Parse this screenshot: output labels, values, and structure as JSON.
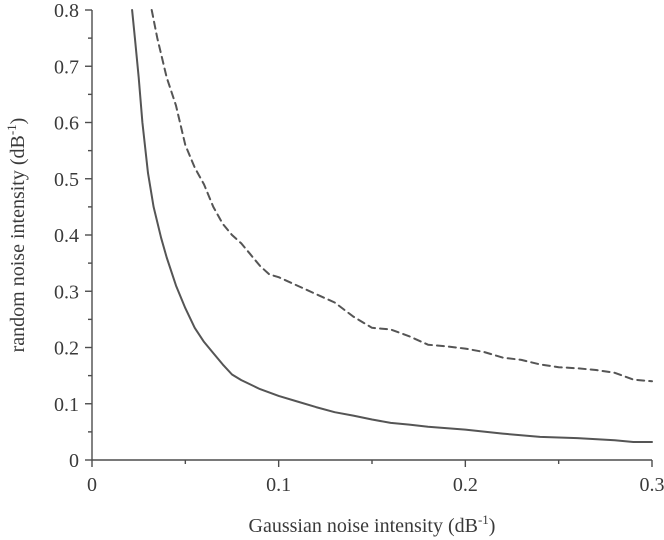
{
  "chart_data": {
    "type": "line",
    "title": "",
    "xlabel": {
      "main": "Gaussian noise intensity (dB",
      "sup": "-1",
      "close": ")"
    },
    "ylabel": {
      "main": "random noise intensity (dB",
      "sup": "-1",
      "close": ")"
    },
    "xlim": [
      0,
      0.3
    ],
    "ylim": [
      0,
      0.8
    ],
    "x_ticks": [
      0,
      0.1,
      0.2,
      0.3
    ],
    "x_tick_labels": [
      "0",
      "0.1",
      "0.2",
      "0.3"
    ],
    "y_ticks": [
      0,
      0.1,
      0.2,
      0.3,
      0.4,
      0.5,
      0.6,
      0.7,
      0.8
    ],
    "y_tick_labels": [
      "0",
      "0.1",
      "0.2",
      "0.3",
      "0.4",
      "0.5",
      "0.6",
      "0.7",
      "0.8"
    ],
    "grid": false,
    "series": [
      {
        "style": "solid",
        "color": "#555555",
        "x": [
          0.0215,
          0.023,
          0.025,
          0.027,
          0.03,
          0.033,
          0.037,
          0.04,
          0.045,
          0.05,
          0.055,
          0.06,
          0.065,
          0.07,
          0.075,
          0.08,
          0.09,
          0.1,
          0.11,
          0.12,
          0.13,
          0.14,
          0.15,
          0.16,
          0.17,
          0.18,
          0.2,
          0.22,
          0.24,
          0.26,
          0.28,
          0.29,
          0.3
        ],
        "values": [
          0.8,
          0.75,
          0.68,
          0.6,
          0.51,
          0.45,
          0.395,
          0.36,
          0.31,
          0.27,
          0.235,
          0.21,
          0.19,
          0.17,
          0.152,
          0.142,
          0.126,
          0.114,
          0.104,
          0.094,
          0.085,
          0.079,
          0.072,
          0.066,
          0.063,
          0.059,
          0.054,
          0.047,
          0.041,
          0.039,
          0.035,
          0.032,
          0.032
        ]
      },
      {
        "style": "dashed",
        "color": "#555555",
        "x": [
          0.032,
          0.035,
          0.04,
          0.045,
          0.05,
          0.055,
          0.06,
          0.065,
          0.07,
          0.075,
          0.08,
          0.085,
          0.09,
          0.095,
          0.1,
          0.11,
          0.12,
          0.13,
          0.14,
          0.15,
          0.16,
          0.17,
          0.18,
          0.19,
          0.2,
          0.21,
          0.22,
          0.23,
          0.24,
          0.25,
          0.26,
          0.27,
          0.28,
          0.29,
          0.3
        ],
        "values": [
          0.8,
          0.75,
          0.68,
          0.63,
          0.56,
          0.52,
          0.49,
          0.45,
          0.42,
          0.4,
          0.385,
          0.365,
          0.345,
          0.33,
          0.325,
          0.31,
          0.295,
          0.28,
          0.255,
          0.235,
          0.232,
          0.22,
          0.205,
          0.202,
          0.198,
          0.192,
          0.182,
          0.178,
          0.17,
          0.165,
          0.163,
          0.16,
          0.155,
          0.143,
          0.14
        ]
      }
    ]
  }
}
